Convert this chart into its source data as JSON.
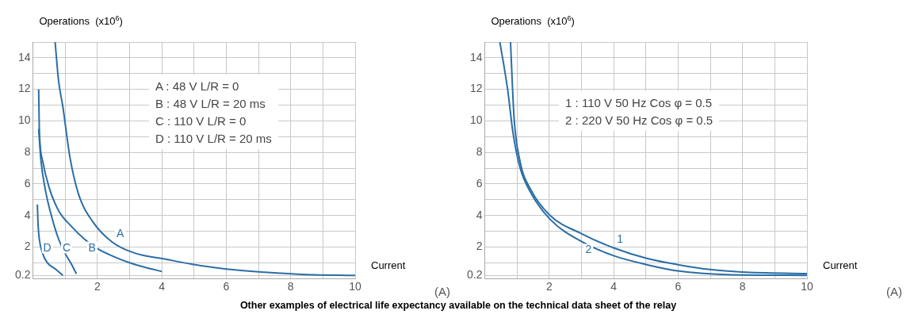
{
  "chart_data": [
    {
      "type": "line",
      "ylabel": "Operations  (x10$^{6}$)",
      "xlabel": "Current",
      "xlim": [
        0,
        10
      ],
      "ylim": [
        0,
        15
      ],
      "xticks": [
        {
          "value": 1,
          "label": null
        },
        2,
        {
          "value": 3,
          "label": null
        },
        4,
        {
          "value": 5,
          "label": null
        },
        6,
        {
          "value": 7,
          "label": null
        },
        8,
        {
          "value": 9,
          "label": null
        },
        10
      ],
      "yticks": [
        {
          "value": 0.2,
          "label": "0.2"
        },
        {
          "value": 1,
          "label": null
        },
        2,
        {
          "value": 3,
          "label": null
        },
        4,
        {
          "value": 5,
          "label": null
        },
        6,
        {
          "value": 7,
          "label": null
        },
        8,
        {
          "value": 9,
          "label": null
        },
        10,
        {
          "value": 11,
          "label": null
        },
        12,
        {
          "value": 13,
          "label": null
        },
        14,
        {
          "value": 15,
          "label": null
        }
      ],
      "grid": true,
      "legend": false,
      "series": [
        {
          "name": "A",
          "color": "#2a6ea6",
          "x": [
            0.69,
            0.8,
            0.93,
            1.15,
            1.41,
            1.86,
            2.47,
            3.18,
            4.06,
            4.95,
            6,
            7.2,
            8.5,
            10
          ],
          "values": [
            15,
            12.5,
            10.9,
            7.7,
            5.4,
            3.6,
            2.3,
            1.6,
            1.25,
            0.9,
            0.6,
            0.4,
            0.25,
            0.2
          ]
        },
        {
          "name": "B",
          "color": "#2a6ea6",
          "x": [
            0.18,
            0.2,
            0.3,
            0.5,
            0.8,
            1.2,
            1.6,
            2,
            2.5,
            3,
            3.5,
            4
          ],
          "values": [
            12,
            9.5,
            7.5,
            5.8,
            4.3,
            3.3,
            2.5,
            1.9,
            1.4,
            1,
            0.7,
            0.45
          ]
        },
        {
          "name": "C",
          "color": "#2a6ea6",
          "x": [
            0.18,
            0.25,
            0.4,
            0.6,
            0.8,
            1,
            1.2,
            1.35
          ],
          "values": [
            9.5,
            7.5,
            5.5,
            3.8,
            2.5,
            1.6,
            0.9,
            0.3
          ]
        },
        {
          "name": "D",
          "color": "#2a6ea6",
          "x": [
            0.14,
            0.16,
            0.2,
            0.3,
            0.45,
            0.7,
            0.93
          ],
          "values": [
            4.7,
            3.5,
            2.5,
            1.6,
            1,
            0.6,
            0.2
          ]
        }
      ],
      "annotations": [
        "(A)",
        "A : 48 V L/R = 0",
        "B : 48 V L/R = 20 ms",
        "C : 110 V L/R = 0",
        "D : 110 V L/R = 20 ms"
      ]
    },
    {
      "type": "line",
      "ylabel": "Operations  (x10$^{6}$)",
      "xlabel": "Current",
      "xlim": [
        0,
        10
      ],
      "ylim": [
        0,
        15
      ],
      "xticks": [
        {
          "value": 1,
          "label": null
        },
        2,
        {
          "value": 3,
          "label": null
        },
        4,
        {
          "value": 5,
          "label": null
        },
        6,
        {
          "value": 7,
          "label": null
        },
        8,
        {
          "value": 9,
          "label": null
        },
        10
      ],
      "yticks": [
        {
          "value": 0.2,
          "label": "0.2"
        },
        {
          "value": 1,
          "label": null
        },
        2,
        {
          "value": 3,
          "label": null
        },
        4,
        {
          "value": 5,
          "label": null
        },
        6,
        {
          "value": 7,
          "label": null
        },
        8,
        {
          "value": 9,
          "label": null
        },
        10,
        {
          "value": 11,
          "label": null
        },
        12,
        {
          "value": 13,
          "label": null
        },
        14,
        {
          "value": 15,
          "label": null
        }
      ],
      "grid": true,
      "legend": false,
      "series": [
        {
          "name": "1",
          "color": "#2a6ea6",
          "x": [
            0.8,
            0.91,
            1.1,
            1.44,
            2.03,
            3,
            3.98,
            5.05,
            6.03,
            7,
            7.98,
            10
          ],
          "values": [
            15,
            10.2,
            7.4,
            5.6,
            4,
            2.85,
            1.96,
            1.27,
            0.87,
            0.57,
            0.41,
            0.31
          ]
        },
        {
          "name": "2",
          "color": "#2a6ea6",
          "x": [
            0.47,
            0.71,
            0.88,
            1.1,
            1.44,
            2.03,
            3,
            3.98,
            5.05,
            6.03,
            7.5,
            10
          ],
          "values": [
            15,
            12,
            9.2,
            7,
            5.4,
            3.75,
            2.35,
            1.46,
            0.87,
            0.47,
            0.25,
            0.2
          ]
        }
      ],
      "annotations": [
        "(A)",
        "1 : 110 V 50 Hz Cos φ = 0.5",
        "2 : 220 V 50 Hz Cos φ = 0.5"
      ]
    },
    {
      "type": "other",
      "annotations": [
        "Other examples of electrical life expectancy available on the technical data sheet of the relay"
      ]
    }
  ]
}
